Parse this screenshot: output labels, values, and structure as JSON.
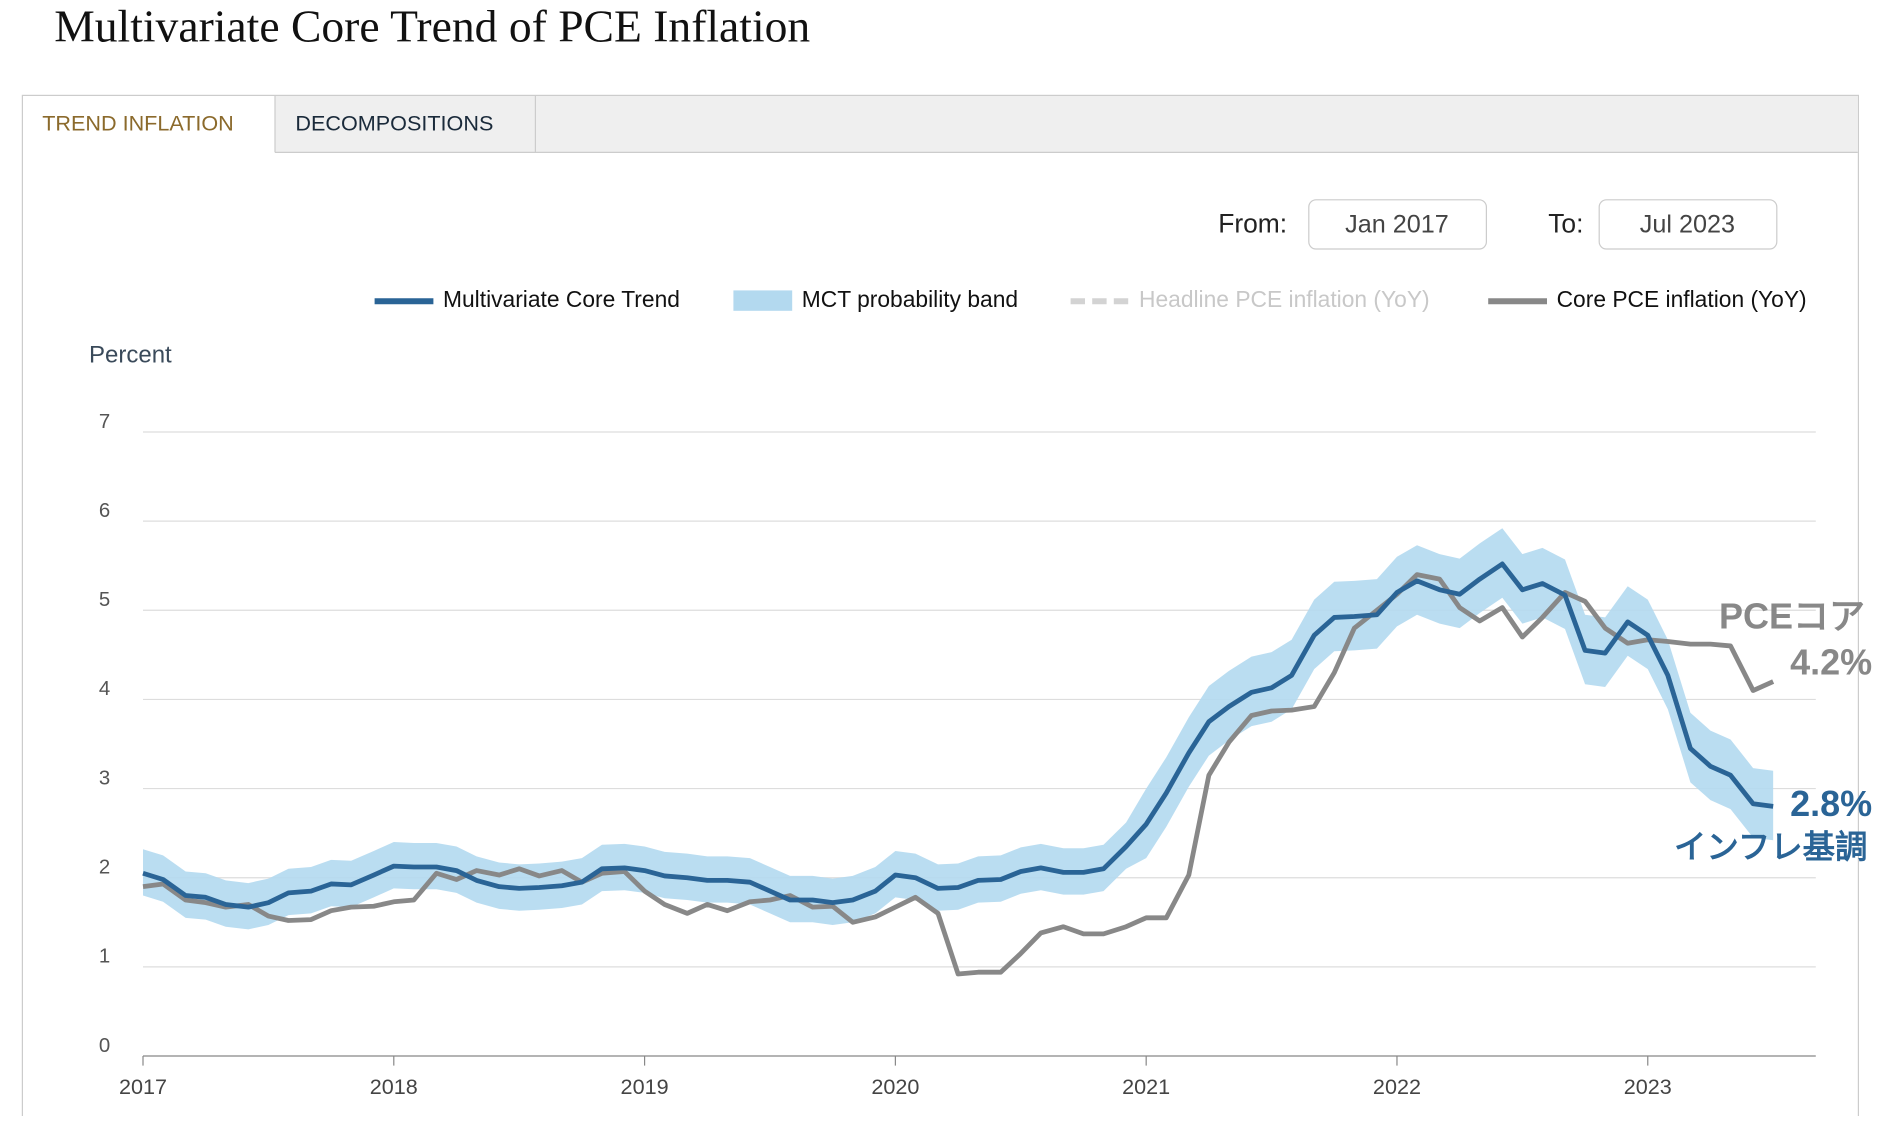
{
  "page": {
    "title": "Multivariate Core Trend of PCE Inflation",
    "tabs": [
      "TREND INFLATION",
      "DECOMPOSITIONS"
    ],
    "from_label": "From:",
    "from": "Jan 2017",
    "to_label": "To:",
    "to": "Jul 2023"
  },
  "chart_data": {
    "type": "line",
    "y_label": "Percent",
    "xlim": [
      2017,
      2023.67
    ],
    "xticks": [
      2017,
      2018,
      2019,
      2020,
      2021,
      2022,
      2023
    ],
    "ylim": [
      0,
      7
    ],
    "yticks": [
      0,
      1,
      2,
      3,
      4,
      5,
      6,
      7
    ],
    "grid": true,
    "x": [
      2017,
      2017.08,
      2017.17,
      2017.25,
      2017.33,
      2017.42,
      2017.5,
      2017.58,
      2017.67,
      2017.75,
      2017.83,
      2017.92,
      2018,
      2018.08,
      2018.17,
      2018.25,
      2018.33,
      2018.42,
      2018.5,
      2018.58,
      2018.67,
      2018.75,
      2018.83,
      2018.92,
      2019,
      2019.08,
      2019.17,
      2019.25,
      2019.33,
      2019.42,
      2019.5,
      2019.58,
      2019.67,
      2019.75,
      2019.83,
      2019.92,
      2020,
      2020.08,
      2020.17,
      2020.25,
      2020.33,
      2020.42,
      2020.5,
      2020.58,
      2020.67,
      2020.75,
      2020.83,
      2020.92,
      2021,
      2021.08,
      2021.17,
      2021.25,
      2021.33,
      2021.42,
      2021.5,
      2021.58,
      2021.67,
      2021.75,
      2021.83,
      2021.92,
      2022,
      2022.08,
      2022.17,
      2022.25,
      2022.33,
      2022.42,
      2022.5,
      2022.58,
      2022.67,
      2022.75,
      2022.83,
      2022.92,
      2023,
      2023.08,
      2023.17,
      2023.25,
      2023.33,
      2023.42,
      2023.5
    ],
    "series": [
      {
        "name": "Multivariate Core Trend",
        "color": "#2a6496",
        "kind": "line",
        "end_label": "2.8%",
        "annotation": "インフレ基調",
        "values": [
          2.05,
          1.98,
          1.8,
          1.78,
          1.7,
          1.67,
          1.72,
          1.83,
          1.85,
          1.93,
          1.92,
          2.03,
          2.13,
          2.12,
          2.12,
          2.08,
          1.97,
          1.9,
          1.88,
          1.89,
          1.91,
          1.95,
          2.1,
          2.11,
          2.08,
          2.02,
          2.0,
          1.97,
          1.97,
          1.95,
          1.85,
          1.75,
          1.75,
          1.72,
          1.75,
          1.85,
          2.03,
          2.0,
          1.88,
          1.89,
          1.97,
          1.98,
          2.07,
          2.11,
          2.06,
          2.06,
          2.1,
          2.35,
          2.6,
          2.95,
          3.4,
          3.75,
          3.92,
          4.08,
          4.13,
          4.27,
          4.72,
          4.92,
          4.93,
          4.95,
          5.2,
          5.33,
          5.23,
          5.18,
          5.35,
          5.52,
          5.23,
          5.3,
          5.17,
          4.55,
          4.52,
          4.87,
          4.72,
          4.27,
          3.45,
          3.25,
          3.15,
          2.83,
          2.8
        ]
      },
      {
        "name": "MCT probability band",
        "color": "#b3d9ef",
        "kind": "band",
        "upper": [
          2.32,
          2.25,
          2.07,
          2.05,
          1.97,
          1.94,
          1.99,
          2.1,
          2.12,
          2.2,
          2.19,
          2.3,
          2.4,
          2.39,
          2.39,
          2.35,
          2.24,
          2.17,
          2.15,
          2.16,
          2.18,
          2.22,
          2.37,
          2.38,
          2.35,
          2.29,
          2.27,
          2.24,
          2.24,
          2.22,
          2.12,
          2.02,
          2.02,
          1.99,
          2.02,
          2.12,
          2.3,
          2.27,
          2.15,
          2.16,
          2.24,
          2.25,
          2.34,
          2.38,
          2.33,
          2.33,
          2.37,
          2.62,
          3.0,
          3.35,
          3.8,
          4.15,
          4.32,
          4.48,
          4.53,
          4.67,
          5.12,
          5.32,
          5.33,
          5.35,
          5.6,
          5.73,
          5.63,
          5.58,
          5.75,
          5.92,
          5.63,
          5.7,
          5.57,
          4.95,
          4.92,
          5.27,
          5.12,
          4.67,
          3.85,
          3.65,
          3.55,
          3.23,
          3.2
        ],
        "lower": [
          1.8,
          1.73,
          1.55,
          1.53,
          1.45,
          1.42,
          1.47,
          1.58,
          1.6,
          1.68,
          1.67,
          1.78,
          1.88,
          1.87,
          1.87,
          1.83,
          1.72,
          1.65,
          1.63,
          1.64,
          1.66,
          1.7,
          1.85,
          1.86,
          1.83,
          1.77,
          1.75,
          1.72,
          1.72,
          1.7,
          1.6,
          1.5,
          1.5,
          1.47,
          1.5,
          1.6,
          1.78,
          1.75,
          1.63,
          1.64,
          1.72,
          1.73,
          1.82,
          1.86,
          1.81,
          1.81,
          1.85,
          2.1,
          2.22,
          2.57,
          3.02,
          3.37,
          3.54,
          3.7,
          3.75,
          3.89,
          4.34,
          4.54,
          4.55,
          4.57,
          4.82,
          4.95,
          4.85,
          4.8,
          4.97,
          5.14,
          4.85,
          4.92,
          4.79,
          4.17,
          4.14,
          4.49,
          4.34,
          3.89,
          3.07,
          2.87,
          2.77,
          2.45,
          2.42
        ]
      },
      {
        "name": "Headline PCE inflation (YoY)",
        "color": "#d3d3d3",
        "kind": "dashed",
        "visible": false
      },
      {
        "name": "Core PCE inflation (YoY)",
        "color": "#888888",
        "kind": "line",
        "end_label": "4.2%",
        "annotation": "PCEコア",
        "values": [
          1.9,
          1.93,
          1.75,
          1.72,
          1.67,
          1.7,
          1.57,
          1.52,
          1.53,
          1.63,
          1.67,
          1.68,
          1.73,
          1.75,
          2.05,
          1.98,
          2.08,
          2.03,
          2.1,
          2.02,
          2.08,
          1.95,
          2.05,
          2.07,
          1.85,
          1.7,
          1.6,
          1.7,
          1.63,
          1.73,
          1.75,
          1.8,
          1.67,
          1.68,
          1.5,
          1.56,
          1.67,
          1.78,
          1.6,
          0.92,
          0.94,
          0.94,
          1.15,
          1.38,
          1.45,
          1.37,
          1.37,
          1.45,
          1.55,
          1.55,
          2.03,
          3.15,
          3.52,
          3.82,
          3.87,
          3.88,
          3.92,
          4.3,
          4.8,
          5.0,
          5.18,
          5.4,
          5.35,
          5.03,
          4.88,
          5.03,
          4.7,
          4.92,
          5.2,
          5.1,
          4.8,
          4.63,
          4.67,
          4.65,
          4.62,
          4.62,
          4.6,
          4.1,
          4.2
        ]
      }
    ]
  }
}
